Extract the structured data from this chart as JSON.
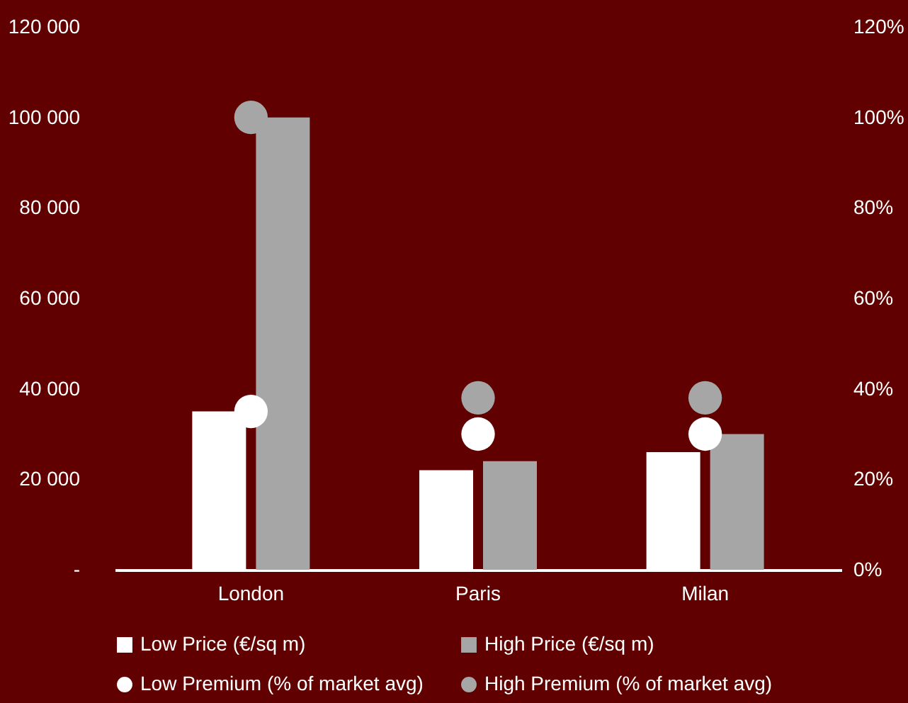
{
  "chart_data": {
    "type": "bar",
    "categories": [
      "London",
      "Paris",
      "Milan"
    ],
    "series": [
      {
        "name": "Low Price (€/sq m)",
        "color": "#ffffff",
        "values": [
          35000,
          22000,
          26000
        ]
      },
      {
        "name": "High Price (€/sq m)",
        "color": "#a6a6a6",
        "values": [
          100000,
          24000,
          30000
        ]
      },
      {
        "name": "Low Premium (% of market avg)",
        "color": "#ffffff",
        "type": "scatter",
        "axis": "y2",
        "marker": "circle",
        "values": [
          35,
          30,
          30
        ]
      },
      {
        "name": "High Premium (% of market avg)",
        "color": "#a6a6a6",
        "type": "scatter",
        "axis": "y2",
        "marker": "circle",
        "values": [
          100,
          38,
          38
        ]
      }
    ],
    "ylim": [
      0,
      120000
    ],
    "yticks": [
      {
        "value": 0,
        "label": "-"
      },
      {
        "value": 20000,
        "label": "20 000"
      },
      {
        "value": 40000,
        "label": "40 000"
      },
      {
        "value": 60000,
        "label": "60 000"
      },
      {
        "value": 80000,
        "label": "80 000"
      },
      {
        "value": 100000,
        "label": "100 000"
      },
      {
        "value": 120000,
        "label": "120 000"
      }
    ],
    "y2lim": [
      0,
      120
    ],
    "y2ticks": [
      {
        "value": 0,
        "label": "0%"
      },
      {
        "value": 20,
        "label": "20%"
      },
      {
        "value": 40,
        "label": "40%"
      },
      {
        "value": 60,
        "label": "60%"
      },
      {
        "value": 80,
        "label": "80%"
      },
      {
        "value": 100,
        "label": "100%"
      },
      {
        "value": 120,
        "label": "120%"
      }
    ],
    "legend": "bottom",
    "grid": false
  }
}
